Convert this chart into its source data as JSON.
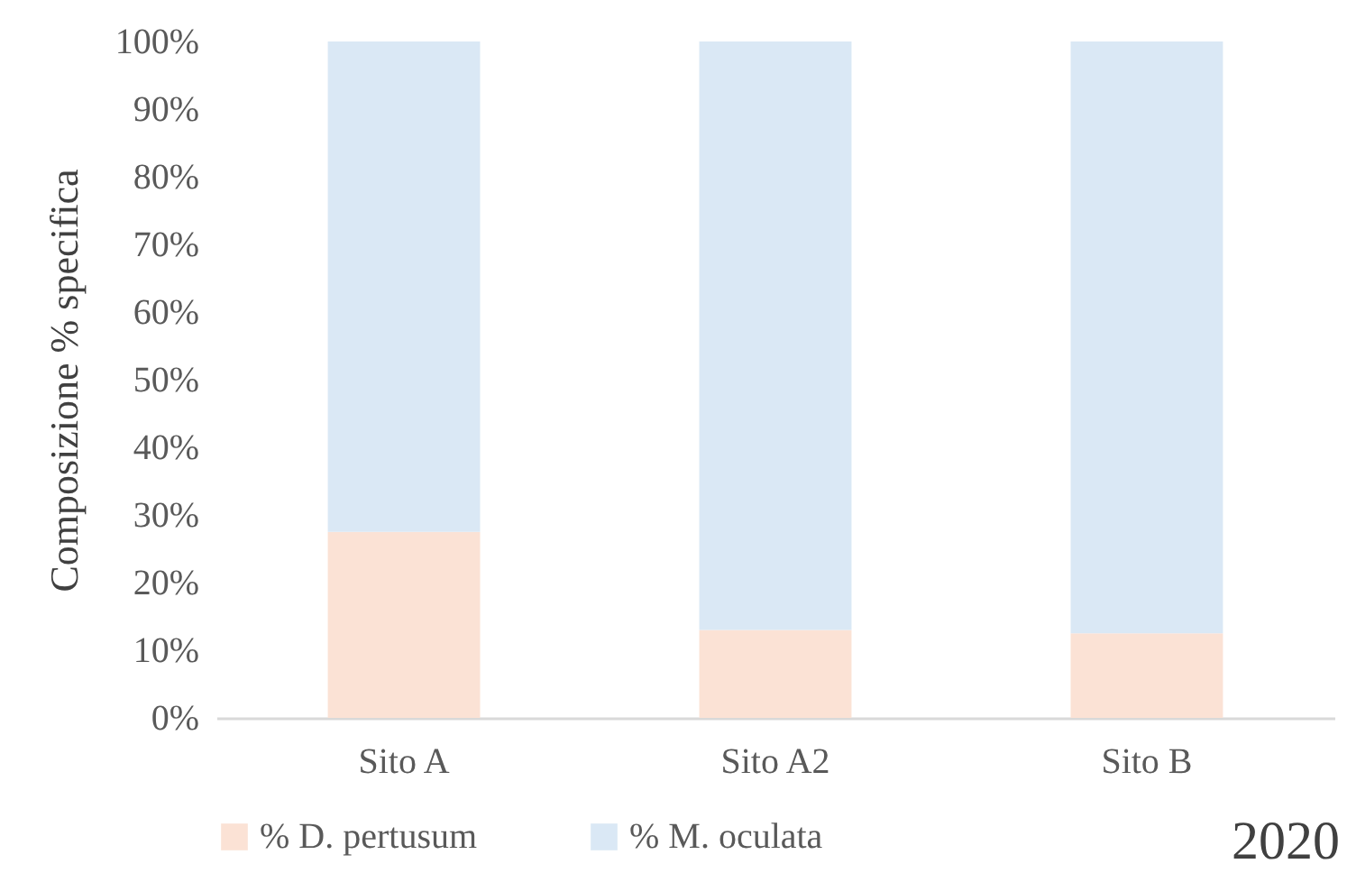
{
  "chart_data": {
    "type": "bar",
    "stacked": true,
    "ylabel": "Composizione % specifica",
    "categories": [
      "Sito A",
      "Sito A2",
      "Sito B"
    ],
    "series": [
      {
        "name": "% D. pertusum",
        "color": "#fbe2d5",
        "values": [
          27.5,
          13,
          12.5
        ]
      },
      {
        "name": "% M. oculata",
        "color": "#dae8f5",
        "values": [
          72.5,
          87,
          87.5
        ]
      }
    ],
    "ylim": [
      0,
      100
    ],
    "yticks": [
      {
        "value": 0,
        "label": "0%"
      },
      {
        "value": 10,
        "label": "10%"
      },
      {
        "value": 20,
        "label": "20%"
      },
      {
        "value": 30,
        "label": "30%"
      },
      {
        "value": 40,
        "label": "40%"
      },
      {
        "value": 50,
        "label": "50%"
      },
      {
        "value": 60,
        "label": "60%"
      },
      {
        "value": 70,
        "label": "70%"
      },
      {
        "value": 80,
        "label": "80%"
      },
      {
        "value": 90,
        "label": "90%"
      },
      {
        "value": 100,
        "label": "100%"
      }
    ],
    "grid": false,
    "legend": "bottom",
    "annotations": [
      "2020"
    ]
  }
}
